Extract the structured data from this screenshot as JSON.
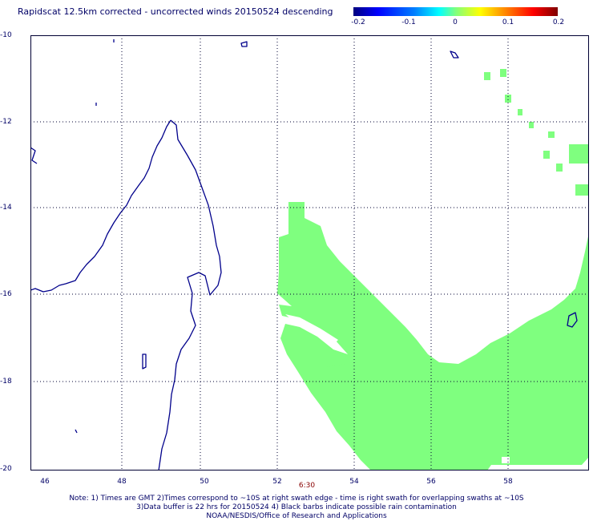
{
  "title": "Rapidscat 12.5km corrected - uncorrected winds 20150524 descending",
  "colorbar": {
    "ticks": [
      "-0.2",
      "-0.1",
      "0",
      "0.1",
      "0.2"
    ],
    "range": [
      -0.2,
      0.2
    ]
  },
  "axes": {
    "lat_labels": [
      "-10",
      "-12",
      "-14",
      "-16",
      "-18",
      "-20"
    ],
    "lon_labels": [
      "46",
      "48",
      "50",
      "52",
      "54",
      "56",
      "58"
    ],
    "lat_range": [
      -20,
      -10
    ],
    "lon_range": [
      45.2,
      59.9
    ]
  },
  "swath_time": "6:30",
  "notes": [
    "Note: 1) Times are GMT 2)Times correspond to ~10S at right swath edge - time is right swath for overlapping swaths at ~10S",
    "3)Data buffer is 22 hrs for 20150524 4) Black barbs indicate possible rain contamination",
    "NOAA/NESDIS/Office of Research and Applications"
  ],
  "colors": {
    "swath": "#7fff7f",
    "coast": "#00008b",
    "grid": "#000033"
  }
}
